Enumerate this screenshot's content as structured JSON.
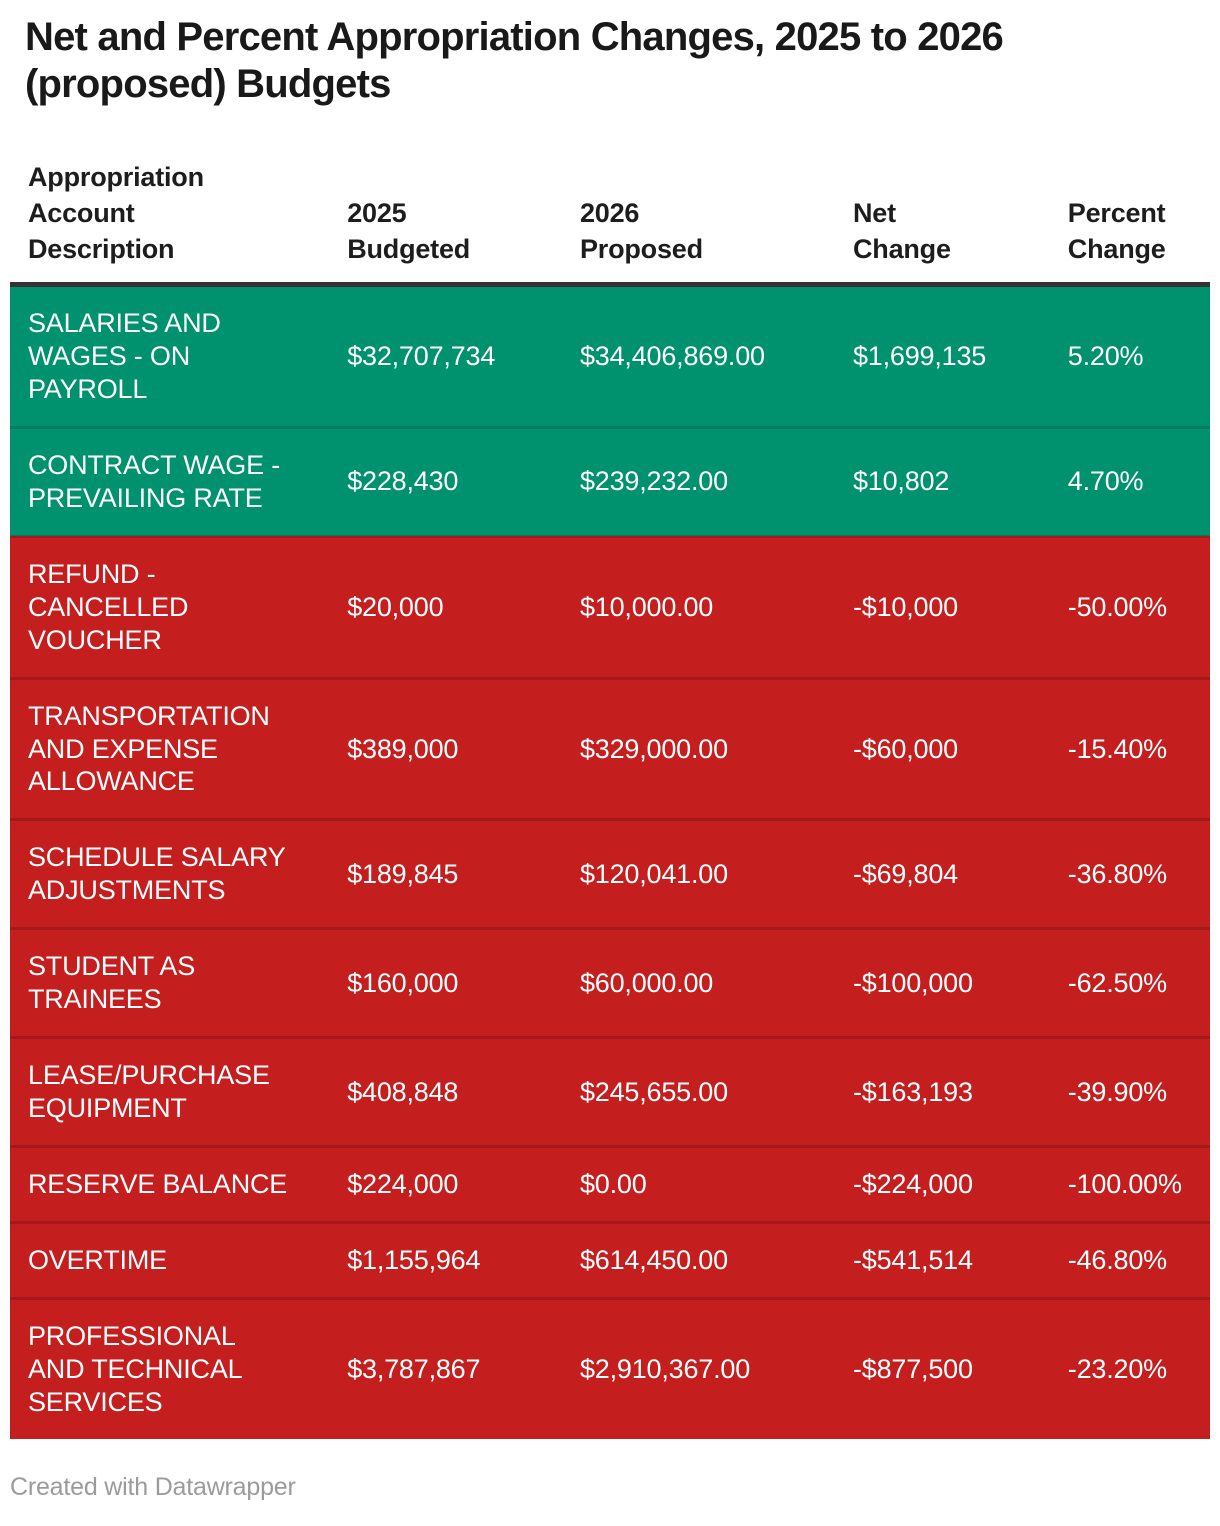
{
  "title": "Net and Percent Appropriation Changes, 2025 to 2026 (proposed) Budgets",
  "chart_data": {
    "type": "table",
    "title": "Net and Percent Appropriation Changes, 2025 to 2026 (proposed) Budgets",
    "columns": [
      "Appropriation\nAccount\nDescription",
      "2025\nBudgeted",
      "2026\nProposed",
      "Net\nChange",
      "Percent\nChange"
    ],
    "rows": [
      {
        "description": "SALARIES AND\nWAGES - ON\nPAYROLL",
        "budgeted_2025": "$32,707,734",
        "proposed_2026": "$34,406,869.00",
        "net_change": "$1,699,135",
        "percent_change": "5.20%",
        "trend": "positive"
      },
      {
        "description": "CONTRACT WAGE -\nPREVAILING RATE",
        "budgeted_2025": "$228,430",
        "proposed_2026": "$239,232.00",
        "net_change": "$10,802",
        "percent_change": "4.70%",
        "trend": "positive"
      },
      {
        "description": "REFUND -\nCANCELLED\nVOUCHER",
        "budgeted_2025": "$20,000",
        "proposed_2026": "$10,000.00",
        "net_change": "-$10,000",
        "percent_change": "-50.00%",
        "trend": "negative"
      },
      {
        "description": "TRANSPORTATION\nAND EXPENSE\nALLOWANCE",
        "budgeted_2025": "$389,000",
        "proposed_2026": "$329,000.00",
        "net_change": "-$60,000",
        "percent_change": "-15.40%",
        "trend": "negative"
      },
      {
        "description": "SCHEDULE SALARY\nADJUSTMENTS",
        "budgeted_2025": "$189,845",
        "proposed_2026": "$120,041.00",
        "net_change": "-$69,804",
        "percent_change": "-36.80%",
        "trend": "negative"
      },
      {
        "description": "STUDENT AS\nTRAINEES",
        "budgeted_2025": "$160,000",
        "proposed_2026": "$60,000.00",
        "net_change": "-$100,000",
        "percent_change": "-62.50%",
        "trend": "negative"
      },
      {
        "description": "LEASE/PURCHASE\nEQUIPMENT",
        "budgeted_2025": "$408,848",
        "proposed_2026": "$245,655.00",
        "net_change": "-$163,193",
        "percent_change": "-39.90%",
        "trend": "negative"
      },
      {
        "description": "RESERVE BALANCE",
        "budgeted_2025": "$224,000",
        "proposed_2026": "$0.00",
        "net_change": "-$224,000",
        "percent_change": "-100.00%",
        "trend": "negative"
      },
      {
        "description": "OVERTIME",
        "budgeted_2025": "$1,155,964",
        "proposed_2026": "$614,450.00",
        "net_change": "-$541,514",
        "percent_change": "-46.80%",
        "trend": "negative"
      },
      {
        "description": "PROFESSIONAL\nAND TECHNICAL\nSERVICES",
        "budgeted_2025": "$3,787,867",
        "proposed_2026": "$2,910,367.00",
        "net_change": "-$877,500",
        "percent_change": "-23.20%",
        "trend": "negative"
      }
    ],
    "layout": {
      "positive_rows_first": true,
      "columns_left_aligned": true,
      "header_position": "top"
    }
  },
  "colors": {
    "positive_row": "#00926f",
    "negative_row": "#c41e1e",
    "row_text": "#ffffff",
    "header_text": "#1d1d1d",
    "header_border": "#333333",
    "title_text": "#191919",
    "footer_text": "#9b9b9b",
    "background": "#ffffff"
  },
  "footer": {
    "credit": "Created with Datawrapper"
  }
}
